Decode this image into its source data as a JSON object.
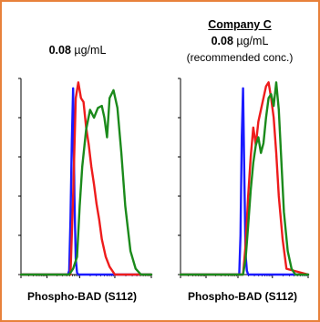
{
  "panels": [
    {
      "company": "",
      "concentration_value": "0.08",
      "concentration_unit": "µg/mL",
      "note": "",
      "xlabel": "Phospho-BAD (S112)"
    },
    {
      "company": "Company C",
      "concentration_value": "0.08",
      "concentration_unit": "µg/mL",
      "note": "(recommended conc.)",
      "xlabel": "Phospho-BAD (S112)"
    }
  ],
  "colors": {
    "border": "#e8813b",
    "blue": "#1a1aff",
    "red": "#ee1c1c",
    "green": "#1b8a1b"
  },
  "chart_data": [
    {
      "type": "line",
      "title": "0.08 µg/mL",
      "xlabel": "Phospho-BAD (S112)",
      "ylabel": "",
      "xlim": [
        0,
        100
      ],
      "ylim": [
        0,
        100
      ],
      "series": [
        {
          "color": "#1a1aff",
          "x": [
            0,
            36,
            37,
            38,
            39,
            40,
            41,
            42,
            43,
            44,
            45,
            100
          ],
          "y": [
            0,
            0,
            2,
            28,
            68,
            95,
            40,
            8,
            1,
            0,
            0,
            0
          ]
        },
        {
          "color": "#ee1c1c",
          "x": [
            0,
            38,
            40,
            42,
            44,
            46,
            48,
            50,
            52,
            54,
            56,
            58,
            60,
            62,
            65,
            68,
            72,
            100
          ],
          "y": [
            0,
            0,
            40,
            90,
            98,
            90,
            88,
            75,
            66,
            55,
            46,
            36,
            28,
            18,
            9,
            4,
            0,
            0
          ]
        },
        {
          "color": "#1b8a1b",
          "x": [
            0,
            37,
            40,
            43,
            45,
            47,
            50,
            53,
            56,
            59,
            62,
            64,
            66,
            68,
            71,
            74,
            77,
            80,
            84,
            88,
            92,
            100
          ],
          "y": [
            0,
            0,
            3,
            9,
            35,
            55,
            74,
            84,
            80,
            85,
            86,
            80,
            70,
            90,
            94,
            85,
            62,
            35,
            12,
            3,
            0,
            0
          ]
        }
      ]
    },
    {
      "type": "line",
      "title": "0.08 µg/mL",
      "xlabel": "Phospho-BAD (S112)",
      "ylabel": "",
      "xlim": [
        0,
        100
      ],
      "ylim": [
        0,
        100
      ],
      "series": [
        {
          "color": "#1a1aff",
          "x": [
            0,
            46,
            47,
            48,
            49,
            50,
            51,
            52,
            53,
            100
          ],
          "y": [
            0,
            0,
            20,
            70,
            95,
            50,
            10,
            2,
            0,
            0
          ]
        },
        {
          "color": "#ee1c1c",
          "x": [
            0,
            49,
            51,
            53,
            55,
            57,
            59,
            61,
            63,
            65,
            67,
            69,
            71,
            73,
            75,
            77,
            80,
            83,
            100
          ],
          "y": [
            0,
            0,
            15,
            40,
            60,
            75,
            66,
            78,
            84,
            90,
            96,
            98,
            90,
            80,
            62,
            40,
            18,
            3,
            0
          ]
        },
        {
          "color": "#1b8a1b",
          "x": [
            0,
            49,
            51,
            53,
            55,
            57,
            59,
            61,
            63,
            65,
            67,
            69,
            71,
            73,
            75,
            77,
            79,
            81,
            84,
            87,
            90,
            100
          ],
          "y": [
            0,
            0,
            8,
            25,
            43,
            57,
            66,
            70,
            62,
            67,
            80,
            90,
            92,
            86,
            98,
            84,
            58,
            32,
            12,
            3,
            0,
            0
          ]
        }
      ]
    }
  ]
}
